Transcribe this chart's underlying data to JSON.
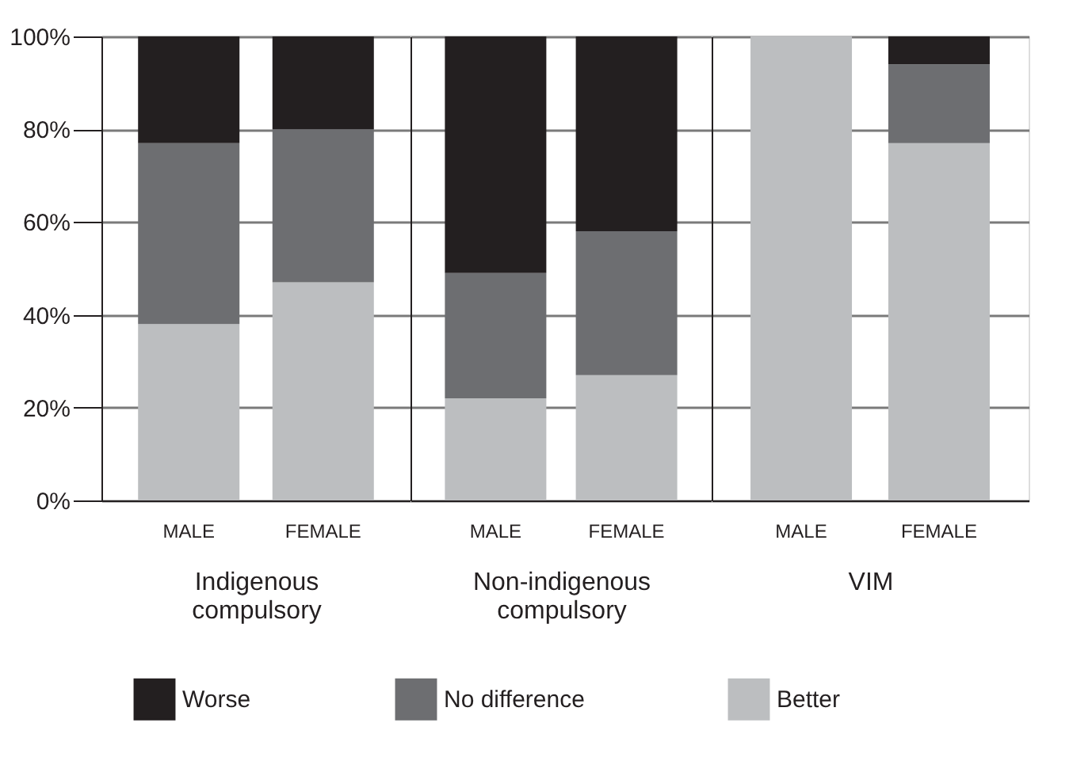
{
  "chart_data": [
    {
      "type": "bar",
      "stacked": true,
      "xlabel": "Indigenous compulsory",
      "categories": [
        "MALE",
        "FEMALE"
      ],
      "series": [
        {
          "name": "Better",
          "color": "#bcbec0",
          "values": [
            38,
            47
          ]
        },
        {
          "name": "No difference",
          "color": "#6d6e71",
          "values": [
            39,
            33
          ]
        },
        {
          "name": "Worse",
          "color": "#231f20",
          "values": [
            23,
            20
          ]
        }
      ],
      "ylim": [
        0,
        100
      ],
      "yticks": [
        {
          "value": 0,
          "label": "0%"
        },
        {
          "value": 20,
          "label": "20%"
        },
        {
          "value": 40,
          "label": "40%"
        },
        {
          "value": 60,
          "label": "60%"
        },
        {
          "value": 80,
          "label": "80%"
        },
        {
          "value": 100,
          "label": "100%"
        }
      ],
      "grid": "y",
      "legend": "bottom"
    },
    {
      "type": "bar",
      "stacked": true,
      "xlabel": "Non-indigenous compulsory",
      "categories": [
        "MALE",
        "FEMALE"
      ],
      "series": [
        {
          "color": "#bcbec0",
          "values": [
            22,
            27
          ]
        },
        {
          "color": "#6d6e71",
          "values": [
            27,
            31
          ]
        },
        {
          "color": "#231f20",
          "values": [
            51,
            42
          ]
        }
      ],
      "ylim": [
        0,
        100
      ],
      "yticks": [
        {
          "value": 0,
          "label": null
        },
        {
          "value": 20,
          "label": null
        },
        {
          "value": 40,
          "label": null
        },
        {
          "value": 60,
          "label": null
        },
        {
          "value": 80,
          "label": null
        },
        {
          "value": 100,
          "label": null
        }
      ],
      "grid": "y",
      "tick_labels": "x"
    },
    {
      "type": "bar",
      "stacked": true,
      "xlabel": "VIM",
      "categories": [
        "MALE",
        "FEMALE"
      ],
      "series": [
        {
          "color": "#bcbec0",
          "values": [
            100,
            77
          ]
        },
        {
          "color": "#6d6e71",
          "values": [
            0,
            17
          ]
        },
        {
          "color": "#231f20",
          "values": [
            0,
            6
          ]
        }
      ],
      "ylim": [
        0,
        100
      ],
      "yticks": [
        {
          "value": 0,
          "label": null
        },
        {
          "value": 20,
          "label": null
        },
        {
          "value": 40,
          "label": null
        },
        {
          "value": 60,
          "label": null
        },
        {
          "value": 80,
          "label": null
        },
        {
          "value": 100,
          "label": null
        }
      ],
      "grid": "y",
      "tick_labels": "x"
    }
  ]
}
